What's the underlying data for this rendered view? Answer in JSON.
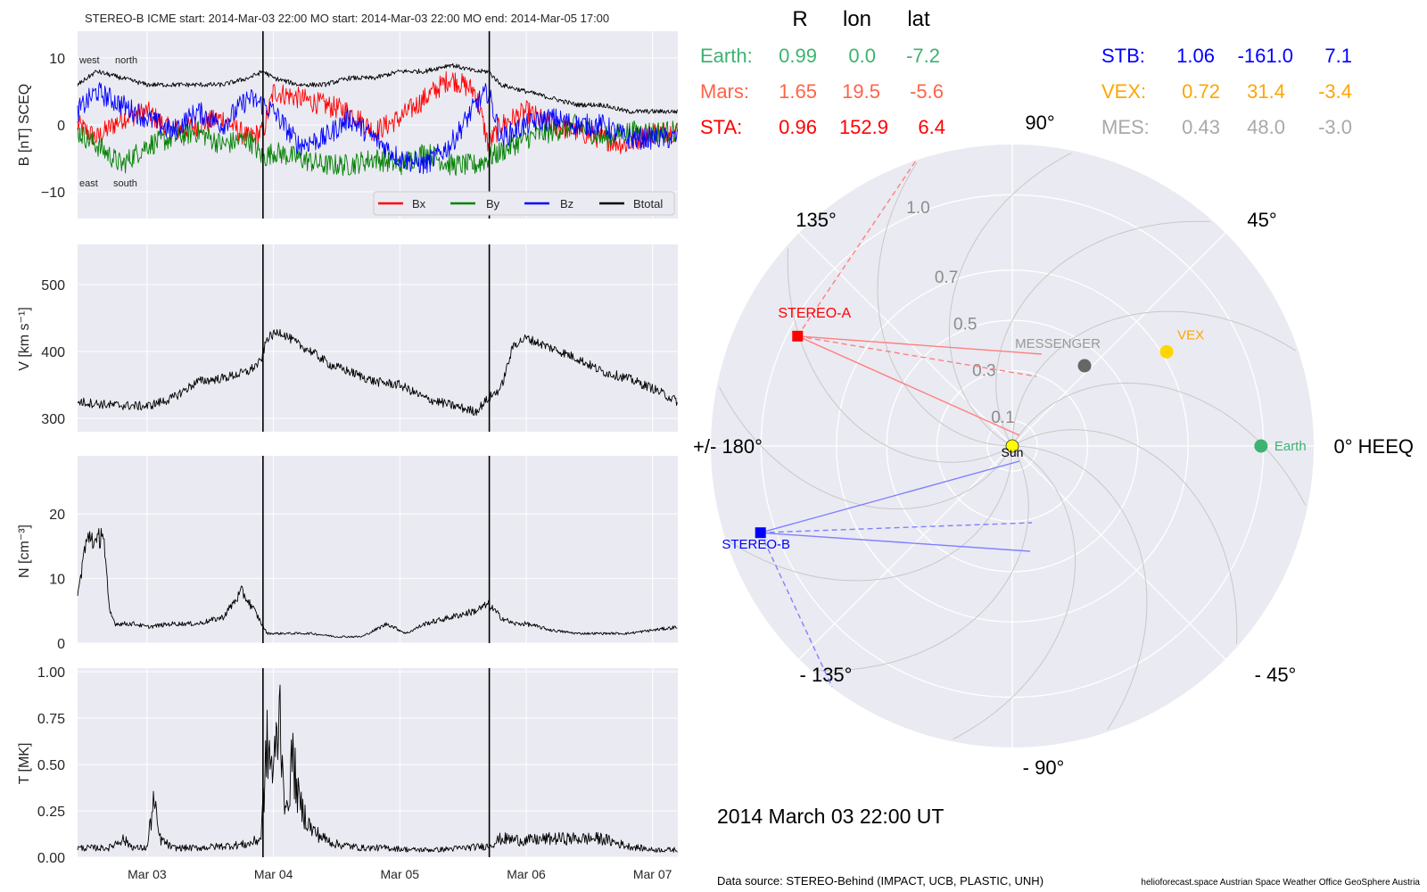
{
  "chart_data": [
    {
      "type": "line",
      "title": "STEREO-B    ICME start: 2014-Mar-03 22:00   MO start: 2014-Mar-03 22:00   MO end: 2014-Mar-05 17:00",
      "ylabel": "B [nT] SCEQ",
      "ylim": [
        -14,
        14
      ],
      "yticks": [
        "10",
        "0",
        "−10"
      ],
      "ytick_values": [
        10,
        0,
        -10
      ],
      "annotations": {
        "west": "west",
        "north": "north",
        "east": "east",
        "south": "south"
      },
      "legend": {
        "position": "bottom-right",
        "entries": [
          "Bx",
          "By",
          "Bz",
          "Btotal"
        ]
      },
      "x_day_ticks": [
        "Mar 03",
        "Mar 04",
        "Mar 05",
        "Mar 06",
        "Mar 07"
      ],
      "x_days": [
        -0.55,
        4.2
      ],
      "event_lines_days": [
        0.917,
        2.708
      ],
      "series": [
        {
          "name": "Bx",
          "color": "#ff0000",
          "days": [
            -0.55,
            -0.4,
            -0.2,
            0.0,
            0.2,
            0.4,
            0.6,
            0.8,
            0.92,
            1.0,
            1.2,
            1.4,
            1.6,
            1.8,
            2.0,
            2.2,
            2.4,
            2.6,
            2.7,
            2.8,
            3.0,
            3.2,
            3.4,
            3.6,
            3.8,
            4.0,
            4.2
          ],
          "values": [
            0,
            -2,
            1,
            2,
            -1,
            0,
            1,
            -2,
            -1,
            5,
            4,
            3,
            2,
            -1,
            1,
            4,
            7,
            5,
            -3,
            0,
            2,
            0,
            -1,
            -2,
            -3,
            -1,
            -1
          ]
        },
        {
          "name": "By",
          "color": "#008000",
          "days": [
            -0.55,
            -0.4,
            -0.2,
            0.0,
            0.2,
            0.4,
            0.6,
            0.8,
            0.92,
            1.0,
            1.2,
            1.4,
            1.6,
            1.8,
            2.0,
            2.2,
            2.4,
            2.6,
            2.7,
            2.8,
            3.0,
            3.2,
            3.4,
            3.6,
            3.8,
            4.0,
            4.2
          ],
          "values": [
            -1,
            -3,
            -6,
            -3,
            -2,
            -1,
            -3,
            -2,
            -5,
            -4,
            -5,
            -6,
            -6,
            -5,
            -6,
            -4,
            -6,
            -6,
            -5,
            -4,
            -2,
            -1,
            0,
            -2,
            -1,
            -1,
            -1
          ]
        },
        {
          "name": "Bz",
          "color": "#0000ff",
          "days": [
            -0.55,
            -0.4,
            -0.2,
            0.0,
            0.2,
            0.4,
            0.6,
            0.8,
            0.92,
            1.0,
            1.2,
            1.4,
            1.6,
            1.8,
            2.0,
            2.2,
            2.4,
            2.6,
            2.7,
            2.8,
            3.0,
            3.2,
            3.4,
            3.6,
            3.8,
            4.0,
            4.2
          ],
          "values": [
            2,
            5,
            3,
            1,
            -1,
            2,
            0,
            4,
            3,
            2,
            -3,
            -2,
            1,
            -2,
            -5,
            -6,
            -3,
            3,
            5,
            -2,
            0,
            1,
            0,
            0,
            -2,
            -2,
            -2
          ]
        },
        {
          "name": "Btotal",
          "color": "#000000",
          "days": [
            -0.55,
            -0.4,
            -0.2,
            0.0,
            0.2,
            0.4,
            0.6,
            0.8,
            0.92,
            1.0,
            1.2,
            1.4,
            1.6,
            1.8,
            2.0,
            2.2,
            2.4,
            2.6,
            2.7,
            2.8,
            3.0,
            3.2,
            3.4,
            3.6,
            3.8,
            4.0,
            4.2
          ],
          "values": [
            6,
            8,
            7,
            6,
            6,
            6,
            6,
            7,
            8,
            7,
            6,
            6,
            7,
            7,
            8,
            8,
            9,
            8,
            8,
            6,
            5,
            4,
            3,
            3,
            2,
            2,
            2
          ]
        }
      ]
    },
    {
      "type": "line",
      "ylabel": "V [km s⁻¹]",
      "ylim": [
        280,
        560
      ],
      "yticks": [
        "500",
        "400",
        "300"
      ],
      "ytick_values": [
        500,
        400,
        300
      ],
      "event_lines_days": [
        0.917,
        2.708
      ],
      "series": [
        {
          "color": "#000000",
          "days": [
            -0.55,
            -0.3,
            0.0,
            0.2,
            0.4,
            0.6,
            0.8,
            0.9,
            0.95,
            1.05,
            1.2,
            1.3,
            1.45,
            1.6,
            1.8,
            2.0,
            2.2,
            2.4,
            2.6,
            2.7,
            2.8,
            2.9,
            3.0,
            3.2,
            3.4,
            3.6,
            3.8,
            4.0,
            4.2
          ],
          "values": [
            325,
            320,
            318,
            330,
            355,
            360,
            370,
            385,
            420,
            430,
            410,
            400,
            380,
            370,
            355,
            350,
            330,
            320,
            310,
            330,
            345,
            410,
            420,
            405,
            390,
            370,
            360,
            345,
            325
          ]
        }
      ]
    },
    {
      "type": "line",
      "ylabel": "N [cm⁻³]",
      "ylim": [
        0,
        29
      ],
      "yticks": [
        "20",
        "10",
        "0"
      ],
      "ytick_values": [
        20,
        10,
        0
      ],
      "event_lines_days": [
        0.917,
        2.708
      ],
      "series": [
        {
          "color": "#000000",
          "days": [
            -0.55,
            -0.5,
            -0.45,
            -0.4,
            -0.35,
            -0.3,
            -0.25,
            -0.2,
            -0.1,
            0.0,
            0.2,
            0.4,
            0.6,
            0.75,
            0.85,
            0.95,
            1.1,
            1.3,
            1.5,
            1.7,
            1.9,
            2.05,
            2.2,
            2.4,
            2.6,
            2.7,
            2.8,
            2.9,
            3.0,
            3.2,
            3.4,
            3.6,
            3.8,
            4.0,
            4.2
          ],
          "values": [
            7,
            14,
            17,
            15,
            18,
            5,
            3,
            3,
            3,
            2.5,
            3,
            3,
            4,
            8,
            5,
            1.5,
            1.5,
            1.5,
            1,
            1,
            3,
            1.5,
            3,
            4,
            5,
            6,
            4,
            3,
            3,
            2,
            1.5,
            1.5,
            1.5,
            2,
            2.5
          ]
        }
      ]
    },
    {
      "type": "line",
      "ylabel": "T [MK]",
      "ylim": [
        0,
        1.02
      ],
      "yticks": [
        "1.00",
        "0.75",
        "0.50",
        "0.25",
        "0.00"
      ],
      "ytick_values": [
        1.0,
        0.75,
        0.5,
        0.25,
        0.0
      ],
      "x_day_ticks": [
        "Mar 03",
        "Mar 04",
        "Mar 05",
        "Mar 06",
        "Mar 07"
      ],
      "event_lines_days": [
        0.917,
        2.708
      ],
      "series": [
        {
          "color": "#000000",
          "days": [
            -0.55,
            -0.3,
            -0.2,
            -0.1,
            0.0,
            0.05,
            0.1,
            0.2,
            0.4,
            0.6,
            0.8,
            0.9,
            0.95,
            1.0,
            1.05,
            1.1,
            1.15,
            1.2,
            1.3,
            1.4,
            1.5,
            1.7,
            1.9,
            2.1,
            2.3,
            2.5,
            2.7,
            2.8,
            3.0,
            3.2,
            3.4,
            3.6,
            3.8,
            4.0,
            4.2
          ],
          "values": [
            0.05,
            0.05,
            0.1,
            0.05,
            0.05,
            0.3,
            0.1,
            0.05,
            0.05,
            0.06,
            0.07,
            0.1,
            0.6,
            0.45,
            0.8,
            0.2,
            0.55,
            0.3,
            0.15,
            0.1,
            0.07,
            0.05,
            0.05,
            0.04,
            0.04,
            0.05,
            0.06,
            0.1,
            0.09,
            0.1,
            0.1,
            0.1,
            0.06,
            0.04,
            0.04
          ]
        }
      ]
    },
    {
      "type": "scatter",
      "subtype": "polar",
      "r_ticks": [
        "0.1",
        "0.3",
        "0.5",
        "0.7",
        "1.0"
      ],
      "r_tick_values": [
        0.1,
        0.3,
        0.5,
        0.7,
        1.0
      ],
      "r_max": 1.2,
      "angle_labels": [
        "0° HEEQ",
        "45°",
        "90°",
        "135°",
        "+/- 180°",
        "- 135°",
        "- 90°",
        "- 45°"
      ],
      "angle_values": [
        0,
        45,
        90,
        135,
        180,
        -135,
        -90,
        -45
      ],
      "points": [
        {
          "name": "Sun",
          "r": 0.0,
          "lon": 0.0,
          "color": "#ffff00",
          "marker": "circle"
        },
        {
          "name": "Earth",
          "r": 0.99,
          "lon": 0.0,
          "color": "#3cb371",
          "marker": "circle"
        },
        {
          "name": "VEX",
          "r": 0.72,
          "lon": 31.4,
          "color": "#ffd700",
          "marker": "circle"
        },
        {
          "name": "MESSENGER",
          "r": 0.43,
          "lon": 48.0,
          "color": "#666666",
          "marker": "circle"
        },
        {
          "name": "STEREO-A",
          "r": 0.96,
          "lon": 152.9,
          "color": "#ff0000",
          "marker": "square"
        },
        {
          "name": "STEREO-B",
          "r": 1.06,
          "lon": -161.0,
          "color": "#0000ff",
          "marker": "square"
        }
      ],
      "table": {
        "headers": [
          "R",
          "lon",
          "lat"
        ],
        "rows": [
          {
            "label": "Earth:",
            "R": "0.99",
            "lon": "0.0",
            "lat": "-7.2",
            "color": "#3cb371"
          },
          {
            "label": "Mars:",
            "R": "1.65",
            "lon": "19.5",
            "lat": "-5.6",
            "color": "#ff6347"
          },
          {
            "label": "STA:",
            "R": "0.96",
            "lon": "152.9",
            "lat": "6.4",
            "color": "#ff0000"
          },
          {
            "label": "STB:",
            "R": "1.06",
            "lon": "-161.0",
            "lat": "7.1",
            "color": "#0000ff"
          },
          {
            "label": "VEX:",
            "R": "0.72",
            "lon": "31.4",
            "lat": "-3.4",
            "color": "#ffa500"
          },
          {
            "label": "MES:",
            "R": "0.43",
            "lon": "48.0",
            "lat": "-3.0",
            "color": "#a9a9a9"
          }
        ]
      }
    }
  ],
  "footer": {
    "timestamp": "2014 March 03  22:00 UT",
    "source": "Data source: STEREO-Behind (IMPACT, UCB, PLASTIC, UNH)",
    "credits": "helioforecast.space   Austrian Space Weather Office   GeoSphere Austria"
  }
}
